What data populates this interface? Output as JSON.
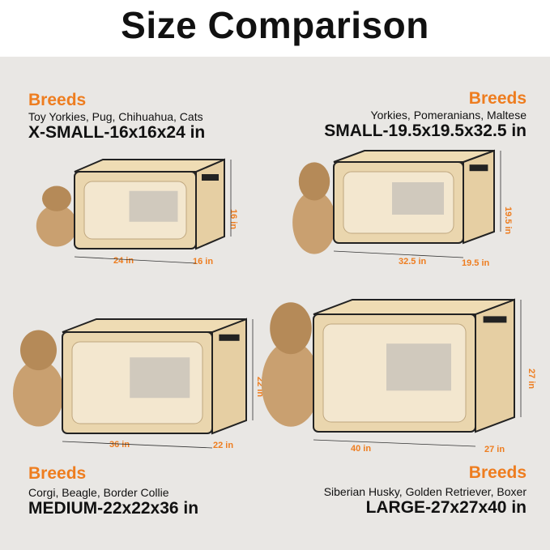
{
  "title": "Size Comparison",
  "accent_color": "#ee7d1f",
  "sizes": [
    {
      "breeds_label": "Breeds",
      "breeds": "Toy Yorkies, Pug, Chihuahua, Cats",
      "size": "X-SMALL-16x16x24 in",
      "length": "24 in",
      "width": "16 in",
      "height": "16 in",
      "animal": "cat-icon"
    },
    {
      "breeds_label": "Breeds",
      "breeds": "Yorkies, Pomeranians, Maltese",
      "size": "SMALL-19.5x19.5x32.5 in",
      "length": "32.5 in",
      "width": "19.5 in",
      "height": "19.5 in",
      "animal": "yorkie-icon"
    },
    {
      "breeds_label": "Breeds",
      "breeds": "Corgi, Beagle, Border Collie",
      "size": "MEDIUM-22x22x36 in",
      "length": "36 in",
      "width": "22 in",
      "height": "22 in",
      "animal": "beagle-icon"
    },
    {
      "breeds_label": "Breeds",
      "breeds": "Siberian Husky, Golden Retriever, Boxer",
      "size": "LARGE-27x27x40 in",
      "length": "40 in",
      "width": "27 in",
      "height": "27 in",
      "animal": "golden-retriever-icon"
    }
  ]
}
